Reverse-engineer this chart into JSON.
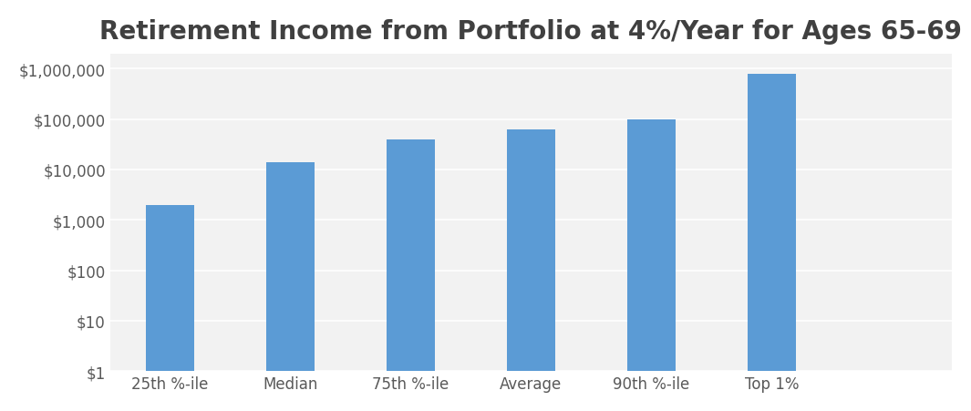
{
  "title": "Retirement Income from Portfolio at 4%/Year for Ages 65-69",
  "categories": [
    "25th %-ile",
    "Median",
    "75th %-ile",
    "Average",
    "90th %-ile",
    "Top 1%"
  ],
  "values": [
    2000,
    14000,
    40000,
    62000,
    100000,
    800000
  ],
  "bar_color": "#5B9BD5",
  "background_color": "#FFFFFF",
  "plot_bg_color": "#F2F2F2",
  "yticks": [
    1,
    10,
    100,
    1000,
    10000,
    100000,
    1000000
  ],
  "ytick_labels": [
    "$1",
    "$10",
    "$100",
    "$1,000",
    "$10,000",
    "$100,000",
    "$1,000,000"
  ],
  "ylim_min": 1,
  "ylim_max": 2000000,
  "grid_color": "#FFFFFF",
  "title_fontsize": 20,
  "tick_fontsize": 12,
  "title_color": "#404040",
  "bar_width": 0.4,
  "xlim_min": -0.5,
  "xlim_max": 6.5
}
